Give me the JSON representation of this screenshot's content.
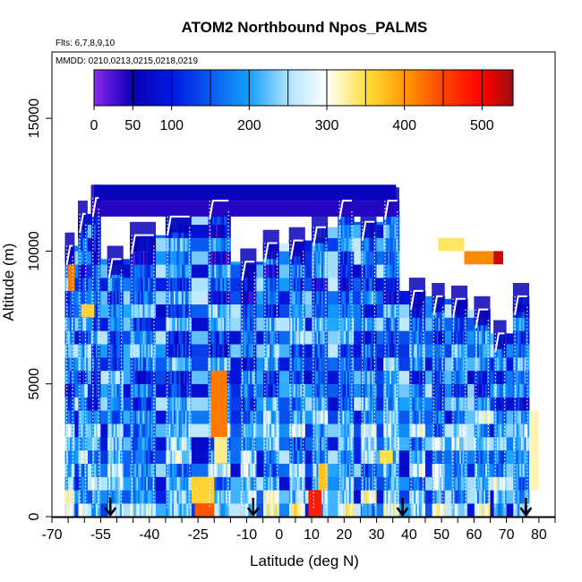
{
  "chart_data": {
    "type": "heatmap",
    "title": "ATOM2 Northbound Npos_PALMS",
    "subtitle_flights": "Flts: 6,7,8,9,10",
    "subtitle_dates": "MMDD: 0210,0213,0215,0218,0219",
    "xlabel": "Latitude (deg N)",
    "ylabel": "Altitude (m)",
    "xlim": [
      -70,
      85
    ],
    "ylim": [
      0,
      17500
    ],
    "x_ticks": [
      -70,
      -55,
      -40,
      -25,
      -10,
      0,
      10,
      20,
      30,
      40,
      50,
      60,
      70,
      80
    ],
    "x_tick_labels": [
      "-70",
      "-55",
      "-40",
      "-25",
      "-10",
      "0",
      "10",
      "20",
      "30",
      "40",
      "50",
      "60",
      "70",
      "80"
    ],
    "x_minor_ticks": [
      -65,
      -60,
      -50,
      -45,
      -35,
      -30,
      -20,
      -15,
      -5,
      5,
      15,
      25,
      35,
      45,
      55,
      65,
      75,
      85
    ],
    "y_ticks": [
      0,
      5000,
      10000,
      15000
    ],
    "y_tick_labels": [
      "0",
      "5000",
      "10000",
      "15000"
    ],
    "colorbar": {
      "range": [
        0,
        540
      ],
      "ticks": [
        0,
        50,
        100,
        200,
        300,
        400,
        500
      ],
      "tick_labels": [
        "0",
        "50",
        "100",
        "200",
        "300",
        "400",
        "500"
      ],
      "dividers": [
        50,
        100,
        150,
        200,
        250,
        300,
        350,
        400,
        450,
        500
      ],
      "stops": [
        {
          "v": 0,
          "color": "#8a2be2"
        },
        {
          "v": 25,
          "color": "#4b10d8"
        },
        {
          "v": 50,
          "color": "#0a00b4"
        },
        {
          "v": 100,
          "color": "#0018e0"
        },
        {
          "v": 150,
          "color": "#0a5af0"
        },
        {
          "v": 200,
          "color": "#14a0ff"
        },
        {
          "v": 250,
          "color": "#aee2ff"
        },
        {
          "v": 300,
          "color": "#ffffff"
        },
        {
          "v": 350,
          "color": "#ffe040"
        },
        {
          "v": 400,
          "color": "#ff9a00"
        },
        {
          "v": 450,
          "color": "#ff4400"
        },
        {
          "v": 500,
          "color": "#ff0000"
        },
        {
          "v": 540,
          "color": "#9b1010"
        }
      ]
    },
    "altitude_bins_m": [
      0,
      500,
      1000,
      1500,
      2000,
      2500,
      3000,
      3500,
      4000,
      4500,
      5000,
      5500,
      6000,
      6500,
      7000,
      7500,
      8000,
      8500,
      9000,
      9500,
      10000,
      10500,
      11000,
      11500,
      12000,
      12500
    ],
    "profiles": [
      {
        "lat0": -66,
        "lat1": -63,
        "top": 10200,
        "base": 130
      },
      {
        "lat0": -62,
        "lat1": -59,
        "top": 11400,
        "base": 350
      },
      {
        "lat0": -58,
        "lat1": -55,
        "top": 12000,
        "base": 300
      },
      {
        "lat0": -53,
        "lat1": -48,
        "top": 9700,
        "base": 400
      },
      {
        "lat0": -46,
        "lat1": -38,
        "top": 10600,
        "base": 250
      },
      {
        "lat0": -35,
        "lat1": -27,
        "top": 11300,
        "base": 300
      },
      {
        "lat0": -22,
        "lat1": -15,
        "top": 11900,
        "base": 300
      },
      {
        "lat0": -12,
        "lat1": -7,
        "top": 9600,
        "base": 250
      },
      {
        "lat0": -5,
        "lat1": 0,
        "top": 10300,
        "base": 300
      },
      {
        "lat0": 3,
        "lat1": 8,
        "top": 10400,
        "base": 250
      },
      {
        "lat0": 10,
        "lat1": 15,
        "top": 10900,
        "base": 300
      },
      {
        "lat0": 18,
        "lat1": 23,
        "top": 11900,
        "base": 300
      },
      {
        "lat0": 25,
        "lat1": 30,
        "top": 11100,
        "base": 300
      },
      {
        "lat0": 32,
        "lat1": 37,
        "top": 11900,
        "base": 300
      },
      {
        "lat0": 40,
        "lat1": 45,
        "top": 8500,
        "base": 300
      },
      {
        "lat0": 47,
        "lat1": 51,
        "top": 8300,
        "base": 300
      },
      {
        "lat0": 53,
        "lat1": 58,
        "top": 8200,
        "base": 300
      },
      {
        "lat0": 60,
        "lat1": 65,
        "top": 7800,
        "base": 300
      },
      {
        "lat0": 66,
        "lat1": 70,
        "top": 6900,
        "base": 300
      },
      {
        "lat0": 72,
        "lat1": 77,
        "top": 8300,
        "base": 250
      }
    ],
    "hot_spots": [
      {
        "lat0": -26,
        "lat1": -20,
        "alt0": 0,
        "alt1": 500,
        "value": 440
      },
      {
        "lat0": -27,
        "lat1": -20,
        "alt0": 500,
        "alt1": 1500,
        "value": 360
      },
      {
        "lat0": -21,
        "lat1": -16,
        "alt0": 3000,
        "alt1": 5500,
        "value": 420
      },
      {
        "lat0": -20,
        "lat1": -16,
        "alt0": 2000,
        "alt1": 3000,
        "value": 330
      },
      {
        "lat0": 9,
        "lat1": 13,
        "alt0": 0,
        "alt1": 1000,
        "value": 480
      },
      {
        "lat0": 12,
        "lat1": 15,
        "alt0": 1000,
        "alt1": 2000,
        "value": 370
      },
      {
        "lat0": 57,
        "lat1": 66,
        "alt0": 9500,
        "alt1": 10000,
        "value": 410
      },
      {
        "lat0": 66,
        "lat1": 69,
        "alt0": 9500,
        "alt1": 10000,
        "value": 520
      },
      {
        "lat0": 49,
        "lat1": 57,
        "alt0": 10000,
        "alt1": 10500,
        "value": 340
      },
      {
        "lat0": -65,
        "lat1": -63,
        "alt0": 8500,
        "alt1": 9500,
        "value": 420
      },
      {
        "lat0": 77,
        "lat1": 80,
        "alt0": 1000,
        "alt1": 4000,
        "value": 320
      },
      {
        "lat0": 31,
        "lat1": 35,
        "alt0": 2000,
        "alt1": 2500,
        "value": 350
      },
      {
        "lat0": -61,
        "lat1": -57,
        "alt0": 7500,
        "alt1": 8000,
        "value": 360
      }
    ],
    "sounding_arrows_lat": [
      -52,
      -8,
      38,
      76
    ]
  }
}
